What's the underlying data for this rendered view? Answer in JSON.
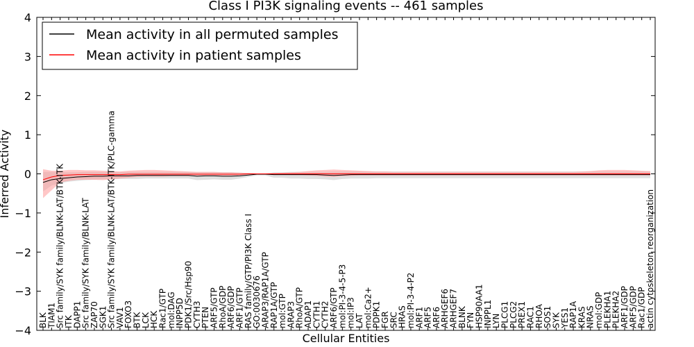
{
  "chart_data": {
    "type": "line",
    "title": "Class I PI3K signaling events -- 461 samples",
    "xlabel": "Cellular Entities",
    "ylabel": "Inferred Activity",
    "ylim": [
      -4,
      4
    ],
    "yticks": [
      -4,
      -3,
      -2,
      -1,
      0,
      1,
      2,
      3,
      4
    ],
    "legend_position": "top-left",
    "categories": [
      "BLK",
      "TIAM1",
      "Src family/SYK family/BLNK-LAT/BTK-ITK",
      "ITK",
      "DAPP1",
      "Src family/SYK family/BLNK-LAT",
      "ZAP70",
      "SGK1",
      "Src family/SYK family/BLNK-LAT/BTK-ITK/PLC-gamma",
      "VAV1",
      "FOXO3",
      "BTK",
      "LCK",
      "HCK",
      "Rac1/GTP",
      "mol:DAG",
      "INPP5D",
      "PDK1/Src/Hsp90",
      "CYTH3",
      "PTEN",
      "ARF5/GTP",
      "RhoA/GDP",
      "ARF6/GDP",
      "ARF1/GTP",
      "RAS family/GTP/PI3K Class I",
      "GO:0030676",
      "ARAP3/RAP1A/GTP",
      "RAP1A/GTP",
      "mol:GTP",
      "ARAP3",
      "RhoA/GTP",
      "ADAP1",
      "CYTH1",
      "CYTH2",
      "ARF6/GTP",
      "mol:PI-3-4-5-P3",
      "mol:IP3",
      "LAT",
      "mol:Ca2+",
      "PDPK1",
      "FGR",
      "SRC",
      "HRAS",
      "mol:PI-3-4-P2",
      "ARF1",
      "ARF5",
      "ARF6",
      "ARHGEF6",
      "ARHGEF7",
      "BLNK",
      "FYN",
      "HSP90AA1",
      "INPPL1",
      "LYN",
      "PLCG1",
      "PLCG2",
      "PREX1",
      "RAC1",
      "RHOA",
      "SOS1",
      "SYK",
      "YES1",
      "RAP1A",
      "KRAS",
      "NRAS",
      "mol:GDP",
      "PLEKHA1",
      "PLEKHA2",
      "ARF1/GDP",
      "ARF5/GDP",
      "Rac1/GDP",
      "actin cytoskeleton reorganization"
    ],
    "series": [
      {
        "name": "Mean activity in all permuted samples",
        "color": "#000000",
        "band_color": "#bbbbbb",
        "values": [
          -0.22,
          -0.15,
          -0.12,
          -0.1,
          -0.08,
          -0.07,
          -0.06,
          -0.06,
          -0.05,
          -0.05,
          -0.05,
          -0.04,
          -0.04,
          -0.04,
          -0.04,
          -0.04,
          -0.04,
          -0.04,
          -0.06,
          -0.05,
          -0.05,
          -0.06,
          -0.06,
          -0.05,
          -0.03,
          -0.01,
          -0.01,
          -0.02,
          -0.02,
          -0.02,
          -0.02,
          -0.02,
          -0.02,
          -0.03,
          -0.04,
          -0.03,
          -0.02,
          -0.02,
          -0.02,
          -0.02,
          -0.02,
          -0.02,
          -0.02,
          -0.02,
          -0.02,
          -0.02,
          -0.02,
          -0.02,
          -0.02,
          -0.02,
          -0.02,
          -0.02,
          -0.02,
          -0.02,
          -0.02,
          -0.02,
          -0.02,
          -0.02,
          -0.02,
          -0.02,
          -0.02,
          -0.02,
          -0.02,
          -0.02,
          -0.02,
          -0.02,
          -0.02,
          -0.02,
          -0.02,
          -0.02,
          -0.02,
          -0.02
        ],
        "lower": [
          -0.45,
          -0.3,
          -0.24,
          -0.2,
          -0.18,
          -0.16,
          -0.15,
          -0.14,
          -0.14,
          -0.13,
          -0.13,
          -0.13,
          -0.12,
          -0.12,
          -0.12,
          -0.12,
          -0.12,
          -0.12,
          -0.16,
          -0.15,
          -0.14,
          -0.15,
          -0.15,
          -0.12,
          -0.08,
          -0.04,
          -0.04,
          -0.1,
          -0.1,
          -0.12,
          -0.12,
          -0.13,
          -0.13,
          -0.14,
          -0.16,
          -0.13,
          -0.12,
          -0.12,
          -0.12,
          -0.11,
          -0.11,
          -0.11,
          -0.11,
          -0.11,
          -0.11,
          -0.11,
          -0.11,
          -0.11,
          -0.11,
          -0.11,
          -0.11,
          -0.11,
          -0.11,
          -0.11,
          -0.11,
          -0.11,
          -0.11,
          -0.11,
          -0.11,
          -0.11,
          -0.11,
          -0.11,
          -0.11,
          -0.11,
          -0.11,
          -0.11,
          -0.11,
          -0.11,
          -0.11,
          -0.11,
          -0.11,
          -0.11
        ],
        "upper": [
          0.05,
          0.05,
          0.04,
          0.04,
          0.04,
          0.05,
          0.05,
          0.05,
          0.05,
          0.05,
          0.05,
          0.05,
          0.05,
          0.05,
          0.05,
          0.05,
          0.05,
          0.05,
          0.04,
          0.04,
          0.04,
          0.04,
          0.04,
          0.03,
          0.02,
          0.01,
          0.01,
          0.04,
          0.04,
          0.05,
          0.05,
          0.05,
          0.05,
          0.05,
          0.06,
          0.06,
          0.06,
          0.06,
          0.06,
          0.06,
          0.06,
          0.06,
          0.06,
          0.06,
          0.06,
          0.06,
          0.06,
          0.06,
          0.06,
          0.06,
          0.06,
          0.06,
          0.06,
          0.06,
          0.06,
          0.06,
          0.06,
          0.06,
          0.06,
          0.06,
          0.06,
          0.06,
          0.06,
          0.06,
          0.06,
          0.06,
          0.06,
          0.06,
          0.06,
          0.06,
          0.06,
          0.06
        ]
      },
      {
        "name": "Mean activity in patient samples",
        "color": "#ff0000",
        "band_color": "#ff9999",
        "values": [
          -0.15,
          -0.08,
          -0.04,
          -0.03,
          -0.02,
          -0.02,
          -0.02,
          -0.02,
          -0.02,
          -0.02,
          -0.01,
          -0.01,
          -0.01,
          -0.01,
          -0.01,
          -0.01,
          -0.01,
          -0.01,
          -0.01,
          -0.01,
          -0.01,
          -0.01,
          -0.01,
          -0.01,
          0.0,
          0.0,
          0.0,
          0.0,
          0.0,
          0.0,
          0.0,
          0.0,
          0.0,
          0.0,
          0.0,
          0.0,
          0.0,
          0.0,
          0.0,
          0.0,
          0.0,
          0.0,
          0.0,
          0.0,
          0.0,
          0.0,
          0.0,
          0.0,
          0.0,
          0.0,
          0.0,
          0.0,
          0.0,
          0.0,
          0.0,
          0.0,
          0.0,
          0.0,
          0.0,
          0.0,
          0.0,
          0.0,
          0.0,
          0.0,
          0.0,
          0.0,
          0.0,
          0.0,
          0.0,
          0.0,
          0.0,
          0.0
        ],
        "lower": [
          -0.62,
          -0.42,
          -0.22,
          -0.18,
          -0.15,
          -0.15,
          -0.15,
          -0.16,
          -0.14,
          -0.12,
          -0.1,
          -0.08,
          -0.07,
          -0.07,
          -0.07,
          -0.06,
          -0.06,
          -0.06,
          -0.05,
          -0.05,
          -0.05,
          -0.05,
          -0.05,
          -0.04,
          -0.02,
          -0.01,
          -0.01,
          -0.02,
          -0.02,
          -0.03,
          -0.03,
          -0.04,
          -0.05,
          -0.07,
          -0.08,
          -0.06,
          -0.05,
          -0.04,
          -0.04,
          -0.04,
          -0.04,
          -0.04,
          -0.04,
          -0.04,
          -0.04,
          -0.04,
          -0.04,
          -0.04,
          -0.04,
          -0.04,
          -0.04,
          -0.04,
          -0.04,
          -0.04,
          -0.04,
          -0.04,
          -0.04,
          -0.04,
          -0.04,
          -0.04,
          -0.04,
          -0.04,
          -0.04,
          -0.04,
          -0.04,
          -0.04,
          -0.04,
          -0.04,
          -0.04,
          -0.04,
          -0.04,
          -0.04
        ],
        "upper": [
          0.12,
          0.08,
          0.08,
          0.1,
          0.1,
          0.09,
          0.09,
          0.08,
          0.07,
          0.06,
          0.08,
          0.09,
          0.1,
          0.1,
          0.09,
          0.08,
          0.07,
          0.06,
          0.05,
          0.05,
          0.05,
          0.04,
          0.04,
          0.03,
          0.02,
          0.01,
          0.01,
          0.02,
          0.03,
          0.04,
          0.05,
          0.07,
          0.09,
          0.1,
          0.11,
          0.1,
          0.09,
          0.08,
          0.07,
          0.06,
          0.06,
          0.05,
          0.05,
          0.05,
          0.05,
          0.05,
          0.05,
          0.05,
          0.05,
          0.05,
          0.05,
          0.05,
          0.05,
          0.05,
          0.05,
          0.05,
          0.05,
          0.05,
          0.05,
          0.05,
          0.05,
          0.05,
          0.05,
          0.06,
          0.07,
          0.09,
          0.1,
          0.1,
          0.1,
          0.09,
          0.08,
          0.07
        ]
      }
    ]
  }
}
